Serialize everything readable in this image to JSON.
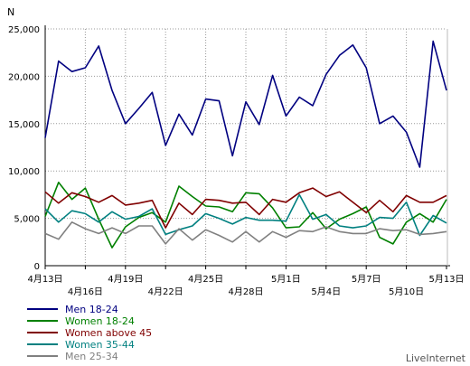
{
  "chart_data": {
    "type": "line",
    "ylabel": "N",
    "ylim": [
      0,
      25000
    ],
    "yticks": [
      0,
      5000,
      10000,
      15000,
      20000,
      25000
    ],
    "ytick_labels": [
      "0",
      "5,000",
      "10,000",
      "15,000",
      "20,000",
      "25,000"
    ],
    "x_dates": [
      "4月13日",
      "4月14日",
      "4月15日",
      "4月16日",
      "4月17日",
      "4月18日",
      "4月19日",
      "4月20日",
      "4月21日",
      "4月22日",
      "4月23日",
      "4月24日",
      "4月25日",
      "4月26日",
      "4月27日",
      "4月28日",
      "4月29日",
      "4月30日",
      "5月1日",
      "5月2日",
      "5月3日",
      "5月4日",
      "5月5日",
      "5月6日",
      "5月7日",
      "5月8日",
      "5月9日",
      "5月10日",
      "5月11日",
      "5月12日",
      "5月13日"
    ],
    "xtick_labels": [
      "4月13日",
      "4月16日",
      "4月19日",
      "4月22日",
      "4月25日",
      "4月28日",
      "5月1日",
      "5月4日",
      "5月7日",
      "5月10日",
      "5月13日"
    ],
    "grid": true,
    "legend": "bottom-left",
    "series": [
      {
        "name": "Men 18-24",
        "color": "#000080",
        "values": [
          13500,
          21600,
          20500,
          20900,
          23200,
          18500,
          15000,
          16600,
          18300,
          12700,
          16000,
          13800,
          17600,
          17400,
          11600,
          17300,
          14900,
          20100,
          15800,
          17800,
          16900,
          20200,
          22200,
          23300,
          20900,
          15000,
          15800,
          14100,
          10400,
          23700,
          18500
        ]
      },
      {
        "name": "Women 18-24",
        "color": "#008000",
        "values": [
          5200,
          8800,
          7000,
          8200,
          4900,
          1900,
          4100,
          5100,
          5600,
          4600,
          8400,
          7300,
          6300,
          6200,
          5700,
          7700,
          7600,
          6100,
          4000,
          4100,
          5600,
          3900,
          4900,
          5500,
          6200,
          3000,
          2300,
          4600,
          5500,
          4600,
          7000
        ]
      },
      {
        "name": "Women above 45",
        "color": "#800000",
        "values": [
          7800,
          6600,
          7700,
          7300,
          6700,
          7400,
          6400,
          6600,
          6900,
          4000,
          6600,
          5400,
          7000,
          6900,
          6600,
          6700,
          5400,
          7000,
          6700,
          7700,
          8200,
          7300,
          7800,
          6700,
          5600,
          6900,
          5700,
          7400,
          6700,
          6700,
          7400
        ]
      },
      {
        "name": "Women 35-44",
        "color": "#008080",
        "values": [
          6000,
          4600,
          5800,
          5500,
          4600,
          5700,
          4900,
          5200,
          6000,
          3300,
          3800,
          4200,
          5500,
          5000,
          4400,
          5100,
          4800,
          4800,
          4700,
          7500,
          4900,
          5400,
          4200,
          4000,
          4200,
          5100,
          5000,
          6700,
          3200,
          5300,
          4500
        ]
      },
      {
        "name": "Men 25-34",
        "color": "#808080",
        "values": [
          3400,
          2800,
          4600,
          3900,
          3400,
          4000,
          3400,
          4200,
          4200,
          2300,
          3900,
          2700,
          3800,
          3200,
          2500,
          3600,
          2500,
          3600,
          3000,
          3700,
          3600,
          4100,
          3600,
          3400,
          3400,
          3900,
          3700,
          3800,
          3300,
          3400,
          3600
        ]
      }
    ]
  },
  "brand": "LiveInternet"
}
